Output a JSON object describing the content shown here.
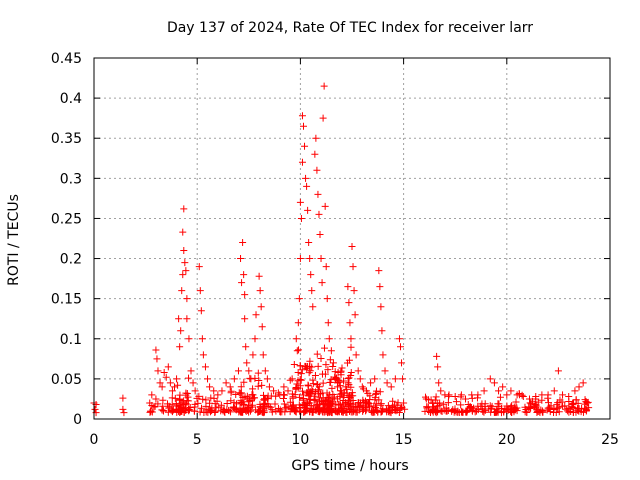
{
  "chart_data": {
    "type": "scatter",
    "title": "Day 137 of 2024, Rate Of TEC Index for receiver larr",
    "xlabel": "GPS time / hours",
    "ylabel": "ROTI / TECUs",
    "xlim": [
      0,
      25
    ],
    "ylim": [
      0,
      0.45
    ],
    "xticks": [
      0,
      5,
      10,
      15,
      20,
      25
    ],
    "xtick_labels": [
      "0",
      "5",
      "10",
      "15",
      "20",
      "25"
    ],
    "yticks": [
      0,
      0.05,
      0.1,
      0.15,
      0.2,
      0.25,
      0.3,
      0.35,
      0.4,
      0.45
    ],
    "ytick_labels": [
      "0",
      "0.05",
      "0.1",
      "0.15",
      "0.2",
      "0.25",
      "0.3",
      "0.35",
      "0.4",
      "0.45"
    ],
    "grid": true,
    "marker": "+",
    "color": "#ff0000",
    "points": [
      [
        0.0,
        0.02
      ],
      [
        0.05,
        0.012
      ],
      [
        0.1,
        0.008
      ],
      [
        0.1,
        0.018
      ],
      [
        1.4,
        0.026
      ],
      [
        1.4,
        0.012
      ],
      [
        1.45,
        0.008
      ],
      [
        2.7,
        0.02
      ],
      [
        2.8,
        0.03
      ],
      [
        2.9,
        0.015
      ],
      [
        3.0,
        0.025
      ],
      [
        3.0,
        0.086
      ],
      [
        3.05,
        0.075
      ],
      [
        3.1,
        0.06
      ],
      [
        3.2,
        0.045
      ],
      [
        3.3,
        0.04
      ],
      [
        3.4,
        0.058
      ],
      [
        3.5,
        0.052
      ],
      [
        3.6,
        0.065
      ],
      [
        3.7,
        0.045
      ],
      [
        3.8,
        0.035
      ],
      [
        3.9,
        0.04
      ],
      [
        4.0,
        0.05
      ],
      [
        4.05,
        0.042
      ],
      [
        4.1,
        0.125
      ],
      [
        4.15,
        0.09
      ],
      [
        4.2,
        0.11
      ],
      [
        4.25,
        0.16
      ],
      [
        4.3,
        0.18
      ],
      [
        4.3,
        0.233
      ],
      [
        4.35,
        0.262
      ],
      [
        4.35,
        0.21
      ],
      [
        4.4,
        0.195
      ],
      [
        4.45,
        0.185
      ],
      [
        4.5,
        0.15
      ],
      [
        4.5,
        0.125
      ],
      [
        4.6,
        0.1
      ],
      [
        4.7,
        0.06
      ],
      [
        4.8,
        0.045
      ],
      [
        4.9,
        0.035
      ],
      [
        5.1,
        0.19
      ],
      [
        5.15,
        0.16
      ],
      [
        5.2,
        0.135
      ],
      [
        5.25,
        0.1
      ],
      [
        5.3,
        0.08
      ],
      [
        5.4,
        0.065
      ],
      [
        5.5,
        0.05
      ],
      [
        5.6,
        0.04
      ],
      [
        5.8,
        0.035
      ],
      [
        6.0,
        0.03
      ],
      [
        6.2,
        0.035
      ],
      [
        6.4,
        0.045
      ],
      [
        6.6,
        0.04
      ],
      [
        6.8,
        0.05
      ],
      [
        7.0,
        0.06
      ],
      [
        7.1,
        0.2
      ],
      [
        7.15,
        0.17
      ],
      [
        7.2,
        0.22
      ],
      [
        7.25,
        0.18
      ],
      [
        7.3,
        0.155
      ],
      [
        7.3,
        0.125
      ],
      [
        7.35,
        0.09
      ],
      [
        7.4,
        0.07
      ],
      [
        7.5,
        0.06
      ],
      [
        7.6,
        0.05
      ],
      [
        7.7,
        0.08
      ],
      [
        7.8,
        0.1
      ],
      [
        7.85,
        0.13
      ],
      [
        8.0,
        0.178
      ],
      [
        8.05,
        0.16
      ],
      [
        8.1,
        0.14
      ],
      [
        8.15,
        0.115
      ],
      [
        8.2,
        0.08
      ],
      [
        8.3,
        0.06
      ],
      [
        8.4,
        0.05
      ],
      [
        8.5,
        0.04
      ],
      [
        8.7,
        0.035
      ],
      [
        9.0,
        0.03
      ],
      [
        9.2,
        0.04
      ],
      [
        9.4,
        0.035
      ],
      [
        9.6,
        0.05
      ],
      [
        9.8,
        0.1
      ],
      [
        9.85,
        0.085
      ],
      [
        9.9,
        0.12
      ],
      [
        9.95,
        0.15
      ],
      [
        10.0,
        0.2
      ],
      [
        10.0,
        0.27
      ],
      [
        10.05,
        0.25
      ],
      [
        10.1,
        0.32
      ],
      [
        10.1,
        0.378
      ],
      [
        10.15,
        0.365
      ],
      [
        10.2,
        0.34
      ],
      [
        10.25,
        0.3
      ],
      [
        10.3,
        0.29
      ],
      [
        10.35,
        0.26
      ],
      [
        10.4,
        0.22
      ],
      [
        10.45,
        0.2
      ],
      [
        10.5,
        0.18
      ],
      [
        10.55,
        0.16
      ],
      [
        10.6,
        0.14
      ],
      [
        10.7,
        0.33
      ],
      [
        10.75,
        0.35
      ],
      [
        10.8,
        0.31
      ],
      [
        10.85,
        0.28
      ],
      [
        10.9,
        0.255
      ],
      [
        10.95,
        0.23
      ],
      [
        11.0,
        0.2
      ],
      [
        11.05,
        0.17
      ],
      [
        11.1,
        0.375
      ],
      [
        11.15,
        0.415
      ],
      [
        11.2,
        0.265
      ],
      [
        11.25,
        0.19
      ],
      [
        11.3,
        0.15
      ],
      [
        11.35,
        0.12
      ],
      [
        11.4,
        0.1
      ],
      [
        11.5,
        0.085
      ],
      [
        11.6,
        0.07
      ],
      [
        11.7,
        0.05
      ],
      [
        11.8,
        0.04
      ],
      [
        12.0,
        0.035
      ],
      [
        12.2,
        0.04
      ],
      [
        12.3,
        0.165
      ],
      [
        12.35,
        0.145
      ],
      [
        12.4,
        0.12
      ],
      [
        12.45,
        0.1
      ],
      [
        12.5,
        0.215
      ],
      [
        12.55,
        0.19
      ],
      [
        12.6,
        0.16
      ],
      [
        12.65,
        0.13
      ],
      [
        12.7,
        0.08
      ],
      [
        12.8,
        0.06
      ],
      [
        12.9,
        0.05
      ],
      [
        13.0,
        0.04
      ],
      [
        13.2,
        0.035
      ],
      [
        13.4,
        0.045
      ],
      [
        13.6,
        0.05
      ],
      [
        13.8,
        0.185
      ],
      [
        13.85,
        0.165
      ],
      [
        13.9,
        0.14
      ],
      [
        13.95,
        0.11
      ],
      [
        14.0,
        0.08
      ],
      [
        14.1,
        0.06
      ],
      [
        14.2,
        0.045
      ],
      [
        14.4,
        0.04
      ],
      [
        14.6,
        0.05
      ],
      [
        14.8,
        0.1
      ],
      [
        14.85,
        0.09
      ],
      [
        14.9,
        0.07
      ],
      [
        14.95,
        0.05
      ],
      [
        15.0,
        0.02
      ],
      [
        16.1,
        0.025
      ],
      [
        16.2,
        0.015
      ],
      [
        16.4,
        0.02
      ],
      [
        16.6,
        0.078
      ],
      [
        16.65,
        0.065
      ],
      [
        16.7,
        0.045
      ],
      [
        16.8,
        0.035
      ],
      [
        17.0,
        0.03
      ],
      [
        17.2,
        0.03
      ],
      [
        17.5,
        0.028
      ],
      [
        17.8,
        0.03
      ],
      [
        18.0,
        0.025
      ],
      [
        18.3,
        0.03
      ],
      [
        18.6,
        0.03
      ],
      [
        18.9,
        0.035
      ],
      [
        19.2,
        0.05
      ],
      [
        19.4,
        0.045
      ],
      [
        19.6,
        0.035
      ],
      [
        19.8,
        0.04
      ],
      [
        20.0,
        0.03
      ],
      [
        20.2,
        0.035
      ],
      [
        20.5,
        0.03
      ],
      [
        20.8,
        0.028
      ],
      [
        21.1,
        0.025
      ],
      [
        21.4,
        0.025
      ],
      [
        21.7,
        0.03
      ],
      [
        22.0,
        0.03
      ],
      [
        22.3,
        0.035
      ],
      [
        22.5,
        0.06
      ],
      [
        22.7,
        0.03
      ],
      [
        23.0,
        0.028
      ],
      [
        23.3,
        0.035
      ],
      [
        23.5,
        0.04
      ],
      [
        23.7,
        0.045
      ],
      [
        23.9,
        0.02
      ]
    ],
    "dense_bands": [
      [
        2.7,
        15.1,
        0.0,
        0.03,
        260
      ],
      [
        16.0,
        24.0,
        0.0,
        0.025,
        220
      ],
      [
        9.5,
        12.5,
        0.0,
        0.09,
        220
      ],
      [
        4.0,
        4.6,
        0.0,
        0.05,
        30
      ],
      [
        7.0,
        8.3,
        0.0,
        0.06,
        50
      ],
      [
        12.3,
        14.0,
        0.0,
        0.045,
        40
      ]
    ]
  }
}
